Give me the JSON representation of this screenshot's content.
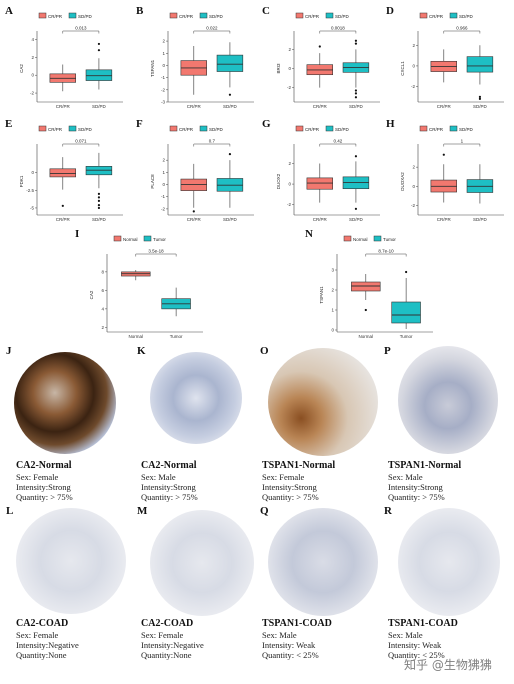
{
  "colors": {
    "group1": "#F2786F",
    "group2": "#1EBFC4",
    "box_stroke": "#333333"
  },
  "chart_data": [
    {
      "letter": "A",
      "type": "boxplot",
      "legend": [
        "CR/PR",
        "SD/PD"
      ],
      "ylabel": "CA2",
      "categories": [
        "CR/PR",
        "SD/PD"
      ],
      "pvalue": "0.013",
      "yticks": [
        -2,
        0,
        2,
        4
      ],
      "ylim": [
        -3,
        4.5
      ],
      "boxes": [
        {
          "min": -1.8,
          "q1": -0.8,
          "median": -0.35,
          "q3": 0.15,
          "max": 1.2
        },
        {
          "min": -1.6,
          "q1": -0.6,
          "median": -0.05,
          "q3": 0.6,
          "max": 1.9
        }
      ],
      "outliers": [
        [],
        [
          2.8,
          3.5
        ]
      ]
    },
    {
      "letter": "B",
      "type": "boxplot",
      "legend": [
        "CR/PR",
        "SD/PD"
      ],
      "ylabel": "TSPAN1",
      "categories": [
        "CR/PR",
        "SD/PD"
      ],
      "pvalue": "0.022",
      "yticks": [
        -3,
        -2,
        -1,
        0,
        1,
        2
      ],
      "ylim": [
        -3,
        2.5
      ],
      "boxes": [
        {
          "min": -2.4,
          "q1": -0.8,
          "median": -0.2,
          "q3": 0.4,
          "max": 1.6
        },
        {
          "min": -1.8,
          "q1": -0.5,
          "median": 0.1,
          "q3": 0.85,
          "max": 1.9
        }
      ],
      "outliers": [
        [],
        [
          -2.4
        ]
      ]
    },
    {
      "letter": "C",
      "type": "boxplot",
      "legend": [
        "CR/PR",
        "SD/PD"
      ],
      "ylabel": "BRI3",
      "categories": [
        "CR/PR",
        "SD/PD"
      ],
      "pvalue": "0.0018",
      "yticks": [
        -2,
        0,
        2
      ],
      "ylim": [
        -3.5,
        3.5
      ],
      "boxes": [
        {
          "min": -2.0,
          "q1": -0.65,
          "median": -0.15,
          "q3": 0.4,
          "max": 1.6
        },
        {
          "min": -2.0,
          "q1": -0.4,
          "median": 0.1,
          "q3": 0.6,
          "max": 2.0
        }
      ],
      "outliers": [
        [
          2.3
        ],
        [
          2.6,
          2.9,
          -2.3,
          -2.6,
          -3.0
        ]
      ]
    },
    {
      "letter": "D",
      "type": "boxplot",
      "legend": [
        "CR/PR",
        "SD/PD"
      ],
      "ylabel": "CXCL1",
      "categories": [
        "CR/PR",
        "SD/PD"
      ],
      "pvalue": "0.966",
      "yticks": [
        -2,
        0,
        2
      ],
      "ylim": [
        -3.5,
        3
      ],
      "boxes": [
        {
          "min": -1.6,
          "q1": -0.55,
          "median": -0.05,
          "q3": 0.45,
          "max": 1.6
        },
        {
          "min": -1.8,
          "q1": -0.6,
          "median": 0.0,
          "q3": 0.9,
          "max": 2.0
        }
      ],
      "outliers": [
        [],
        [
          -3.0,
          -3.2
        ]
      ]
    },
    {
      "letter": "E",
      "type": "boxplot",
      "legend": [
        "CR/PR",
        "SD/PD"
      ],
      "ylabel": "PDK1",
      "categories": [
        "CR/PR",
        "SD/PD"
      ],
      "pvalue": "0.071",
      "yticks": [
        -5,
        -2.5,
        0
      ],
      "ylim": [
        -6,
        3.5
      ],
      "boxes": [
        {
          "min": -2.4,
          "q1": -0.6,
          "median": -0.1,
          "q3": 0.55,
          "max": 2.2
        },
        {
          "min": -2.2,
          "q1": -0.3,
          "median": 0.35,
          "q3": 0.9,
          "max": 2.8
        }
      ],
      "outliers": [
        [
          -4.7
        ],
        [
          -3.0,
          -3.5,
          -4.0,
          -4.6,
          -5.0
        ]
      ]
    },
    {
      "letter": "F",
      "type": "boxplot",
      "legend": [
        "CR/PR",
        "SD/PD"
      ],
      "ylabel": "PLAC8",
      "categories": [
        "CR/PR",
        "SD/PD"
      ],
      "pvalue": "0.7",
      "yticks": [
        -2,
        -1,
        0,
        1,
        2
      ],
      "ylim": [
        -2.5,
        3
      ],
      "boxes": [
        {
          "min": -1.9,
          "q1": -0.5,
          "median": 0.0,
          "q3": 0.45,
          "max": 1.7
        },
        {
          "min": -1.9,
          "q1": -0.55,
          "median": -0.05,
          "q3": 0.5,
          "max": 2.0
        }
      ],
      "outliers": [
        [
          -2.2
        ],
        [
          2.5
        ]
      ]
    },
    {
      "letter": "G",
      "type": "boxplot",
      "legend": [
        "CR/PR",
        "SD/PD"
      ],
      "ylabel": "DUOX2",
      "categories": [
        "CR/PR",
        "SD/PD"
      ],
      "pvalue": "0.42",
      "yticks": [
        -2,
        0,
        2
      ],
      "ylim": [
        -3,
        3.5
      ],
      "boxes": [
        {
          "min": -1.8,
          "q1": -0.5,
          "median": 0.1,
          "q3": 0.6,
          "max": 2.0
        },
        {
          "min": -1.8,
          "q1": -0.45,
          "median": 0.15,
          "q3": 0.7,
          "max": 2.2
        }
      ],
      "outliers": [
        [],
        [
          -2.4,
          2.7
        ]
      ]
    },
    {
      "letter": "H",
      "type": "boxplot",
      "legend": [
        "CR/PR",
        "SD/PD"
      ],
      "ylabel": "DUOXA2",
      "categories": [
        "CR/PR",
        "SD/PD"
      ],
      "pvalue": "1",
      "yticks": [
        -2,
        0,
        2
      ],
      "ylim": [
        -3,
        4
      ],
      "boxes": [
        {
          "min": -1.7,
          "q1": -0.6,
          "median": 0.0,
          "q3": 0.65,
          "max": 2.3
        },
        {
          "min": -1.8,
          "q1": -0.65,
          "median": 0.0,
          "q3": 0.7,
          "max": 2.3
        }
      ],
      "outliers": [
        [
          3.3
        ],
        []
      ]
    },
    {
      "letter": "I",
      "type": "boxplot",
      "legend": [
        "Normal",
        "Tumor"
      ],
      "ylabel": "CA2",
      "categories": [
        "Normal",
        "Tumor"
      ],
      "pvalue": "3.5e-18",
      "yticks": [
        2,
        4,
        6,
        8
      ],
      "ylim": [
        1.5,
        9.5
      ],
      "boxes": [
        {
          "min": 7.1,
          "q1": 7.55,
          "median": 7.8,
          "q3": 8.0,
          "max": 8.2
        },
        {
          "min": 3.2,
          "q1": 4.0,
          "median": 4.55,
          "q3": 5.1,
          "max": 6.3
        }
      ],
      "outliers": [
        [],
        []
      ]
    },
    {
      "letter": "N",
      "type": "boxplot",
      "legend": [
        "Normal",
        "Tumor"
      ],
      "ylabel": "TSPAN1",
      "categories": [
        "Normal",
        "Tumor"
      ],
      "pvalue": "8.7e-10",
      "yticks": [
        0,
        1,
        2,
        3
      ],
      "ylim": [
        -0.1,
        3.6
      ],
      "boxes": [
        {
          "min": 1.5,
          "q1": 1.95,
          "median": 2.2,
          "q3": 2.4,
          "max": 2.8
        },
        {
          "min": 0.05,
          "q1": 0.35,
          "median": 0.75,
          "q3": 1.4,
          "max": 2.6
        }
      ],
      "outliers": [
        [
          1.0
        ],
        [
          2.9
        ]
      ]
    }
  ],
  "histology": [
    {
      "letter": "J",
      "title": "CA2-Normal",
      "lines": [
        "Sex: Female",
        "Intensity:Strong",
        "Quantity: > 75%"
      ]
    },
    {
      "letter": "K",
      "title": "CA2-Normal",
      "lines": [
        "Sex: Male",
        "Intensity:Strong",
        "Quantity: > 75%"
      ]
    },
    {
      "letter": "O",
      "title": "TSPAN1-Normal",
      "lines": [
        "Sex: Female",
        "Intensity:Strong",
        "Quantity: > 75%"
      ]
    },
    {
      "letter": "P",
      "title": "TSPAN1-Normal",
      "lines": [
        "Sex: Male",
        "Intensity:Strong",
        "Quantity: > 75%"
      ]
    },
    {
      "letter": "L",
      "title": "CA2-COAD",
      "lines": [
        "Sex: Female",
        "Intensity:Negative",
        "Quantity:None"
      ]
    },
    {
      "letter": "M",
      "title": "CA2-COAD",
      "lines": [
        "Sex: Female",
        "Intensity:Negative",
        "Quantity:None"
      ]
    },
    {
      "letter": "Q",
      "title": "TSPAN1-COAD",
      "lines": [
        "Sex: Male",
        "Intensity: Weak",
        "Quantity: < 25%"
      ]
    },
    {
      "letter": "R",
      "title": "TSPAN1-COAD",
      "lines": [
        "Sex: Male",
        "Intensity: Weak",
        "Quantity: < 25%"
      ]
    }
  ],
  "watermark": "知乎 @生物狒狒"
}
